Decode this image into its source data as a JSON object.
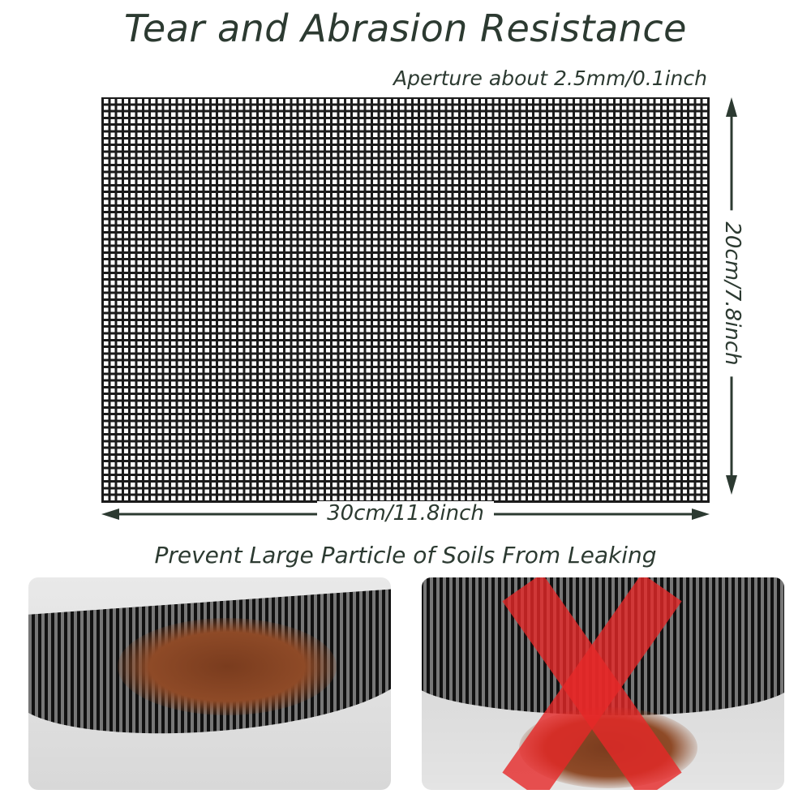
{
  "title": "Tear and Abrasion Resistance",
  "aperture_label": "Aperture about 2.5mm/0.1inch",
  "width_label": "30cm/11.8inch",
  "height_label": "20cm/7.8inch",
  "subtitle": "Prevent Large Particle of Soils From Leaking",
  "colors": {
    "text": "#2c3a31",
    "mesh": "#1b1b1b",
    "cross": "#e62828",
    "soil": "#8e4a27"
  },
  "icons": [
    "double-arrow-horizontal",
    "double-arrow-vertical",
    "red-x-cross"
  ]
}
